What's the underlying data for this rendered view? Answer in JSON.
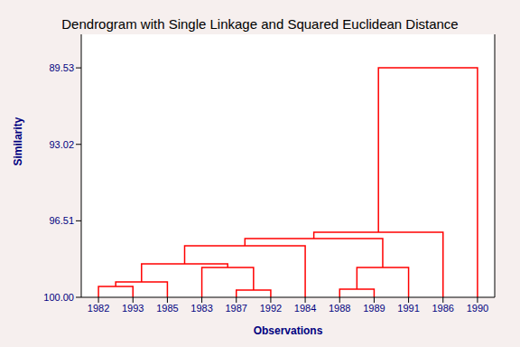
{
  "chart_data": {
    "type": "dendrogram",
    "title": "Dendrogram with Single Linkage and Squared Euclidean Distance",
    "x_label": "Observations",
    "y_label": "Similarity",
    "categories": [
      "1982",
      "1993",
      "1985",
      "1983",
      "1987",
      "1992",
      "1984",
      "1988",
      "1989",
      "1991",
      "1986",
      "1990"
    ],
    "merges": [
      {
        "left": 0,
        "right": 1,
        "similarity": 99.51
      },
      {
        "left": 12,
        "right": 2,
        "similarity": 99.3
      },
      {
        "left": 4,
        "right": 5,
        "similarity": 99.67
      },
      {
        "left": 3,
        "right": 14,
        "similarity": 98.64
      },
      {
        "left": 13,
        "right": 15,
        "similarity": 98.47
      },
      {
        "left": 16,
        "right": 6,
        "similarity": 97.65
      },
      {
        "left": 7,
        "right": 8,
        "similarity": 99.63
      },
      {
        "left": 18,
        "right": 9,
        "similarity": 98.64
      },
      {
        "left": 17,
        "right": 19,
        "similarity": 97.32
      },
      {
        "left": 20,
        "right": 10,
        "similarity": 97.03
      },
      {
        "left": 21,
        "right": 11,
        "similarity": 89.53
      }
    ],
    "color": "#ff0000",
    "ylim": [
      100,
      88.0
    ],
    "yticks": [
      89.53,
      93.02,
      96.51,
      {
        "value": 100,
        "label": "100.00"
      }
    ],
    "grid": false
  }
}
